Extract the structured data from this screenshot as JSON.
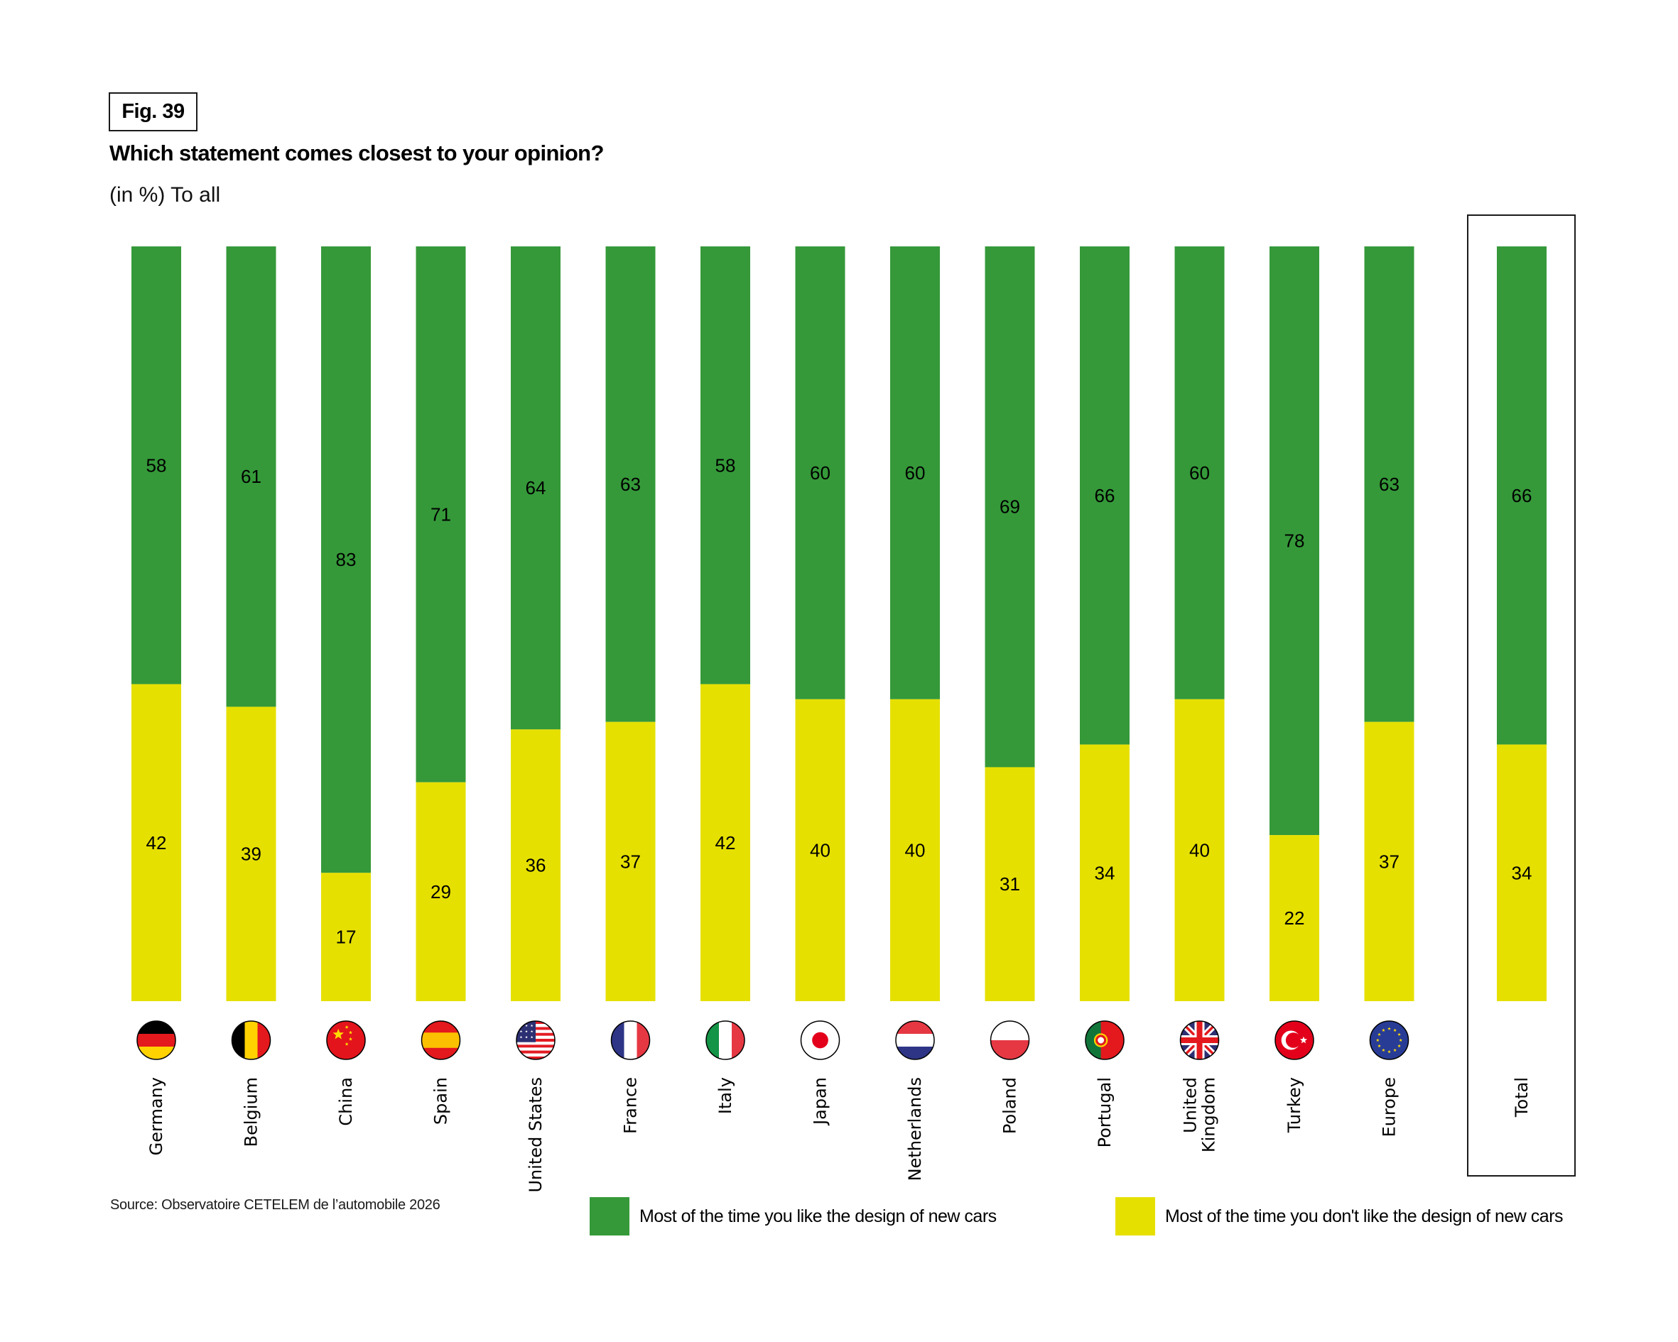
{
  "figure": {
    "number_label": "Fig. 39",
    "title": "Which statement comes closest to your opinion?",
    "subtitle": "(in %) To all",
    "source": "Source: Observatoire CETELEM de l’automobile 2026"
  },
  "colors": {
    "like": "#359939",
    "dislike": "#e6e000",
    "text": "#000000"
  },
  "legend": [
    {
      "key": "like",
      "label": "Most of the time you like the design of new cars",
      "color": "#359939"
    },
    {
      "key": "dislike",
      "label": "Most of the time you don't like the design of new cars",
      "color": "#e6e000"
    }
  ],
  "chart_data": {
    "type": "bar",
    "stacked": true,
    "orientation": "vertical",
    "title": "Which statement comes closest to your opinion?",
    "subtitle": "(in %) To all",
    "xlabel": "",
    "ylabel": "",
    "ylim": [
      0,
      100
    ],
    "grid": false,
    "legend_position": "bottom",
    "categories": [
      "Germany",
      "Belgium",
      "China",
      "Spain",
      "United States",
      "France",
      "Italy",
      "Japan",
      "Netherlands",
      "Poland",
      "Portugal",
      "United Kingdom",
      "Turkey",
      "Europe",
      "Total"
    ],
    "category_display": [
      "Germany",
      "Belgium",
      "China",
      "Spain",
      "United States",
      "France",
      "Italy",
      "Japan",
      "Netherlands",
      "Poland",
      "Portugal",
      "United\nKingdom",
      "Turkey",
      "Europe",
      "Total"
    ],
    "flags": [
      "germany-flag",
      "belgium-flag",
      "china-flag",
      "spain-flag",
      "usa-flag",
      "france-flag",
      "italy-flag",
      "japan-flag",
      "netherlands-flag",
      "poland-flag",
      "portugal-flag",
      "uk-flag",
      "turkey-flag",
      "eu-flag",
      null
    ],
    "highlighted_category": "Total",
    "series": [
      {
        "name": "Most of the time you like the design of new cars",
        "color": "#359939",
        "position": "top",
        "values": [
          58,
          61,
          83,
          71,
          64,
          63,
          58,
          60,
          60,
          69,
          66,
          60,
          78,
          63,
          66
        ]
      },
      {
        "name": "Most of the time you don't like the design of new cars",
        "color": "#e6e000",
        "position": "bottom",
        "values": [
          42,
          39,
          17,
          29,
          36,
          37,
          42,
          40,
          40,
          31,
          34,
          40,
          22,
          37,
          34
        ]
      }
    ]
  }
}
